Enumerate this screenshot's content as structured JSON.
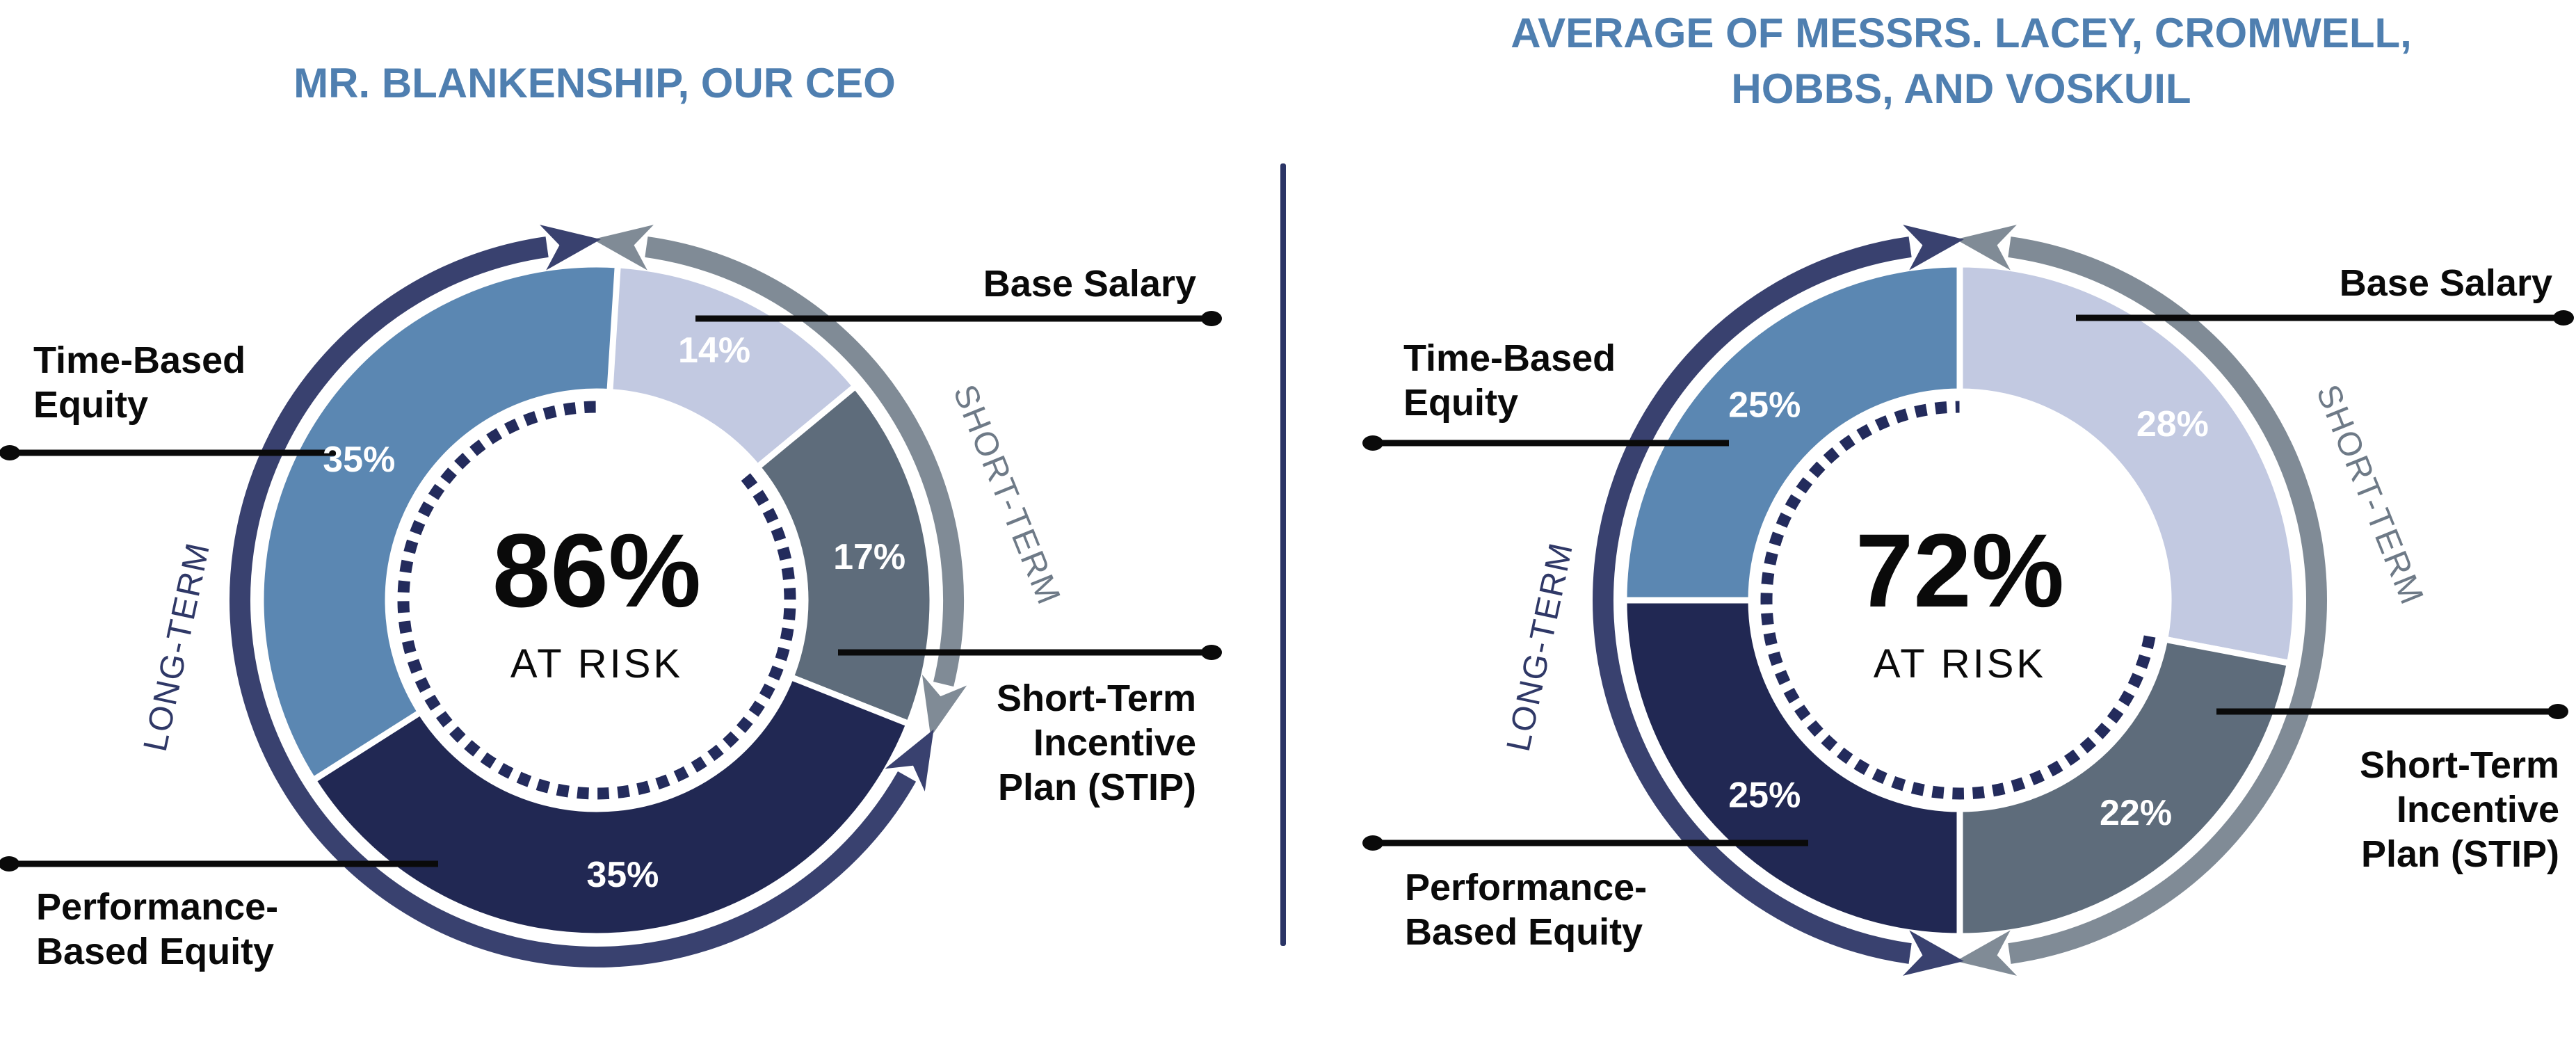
{
  "figure": {
    "kind": "executive-pay-mix-donuts",
    "background": "#ffffff",
    "divider_color": "#2b3566"
  },
  "chart_data": {
    "type": "pie",
    "subtype": "donut-pair",
    "title": "Pay mix: percent of compensation at risk",
    "legend_position": "callouts",
    "colors": {
      "title_text": "#4f7fb0",
      "long_term_arc": "#39416f",
      "short_term_arc": "#808b96",
      "dotted_ring": "#232b5c",
      "callout_line": "#0a0a0a",
      "percent_text": "#ffffff"
    },
    "charts": [
      {
        "id": "ceo",
        "title_lines": [
          "MR. BLANKENSHIP, OUR CEO"
        ],
        "center_value": "86%",
        "center_label": "AT RISK",
        "at_risk_pct": 86,
        "arc_labels": {
          "short_term": "SHORT-TERM",
          "long_term": "LONG-TERM"
        },
        "categories": [
          "Base Salary",
          "Short-Term Incentive Plan (STIP)",
          "Performance-Based Equity",
          "Time-Based Equity"
        ],
        "values": [
          14,
          17,
          35,
          35
        ],
        "segments": [
          {
            "label": "Base Salary",
            "pct": 14,
            "display": "14%",
            "color": "#c2c9e1",
            "term": "short"
          },
          {
            "label": "Short-Term Incentive Plan (STIP)",
            "pct": 17,
            "display": "17%",
            "color": "#5e6c7b",
            "term": "short"
          },
          {
            "label": "Performance-Based Equity",
            "pct": 35,
            "display": "35%",
            "color": "#212853",
            "term": "long"
          },
          {
            "label": "Time-Based Equity",
            "pct": 35,
            "display": "35%",
            "color": "#5b87b2",
            "term": "long"
          }
        ],
        "callout_labels": {
          "base": [
            "Base Salary"
          ],
          "time": [
            "Time-Based",
            "Equity"
          ],
          "stip": [
            "Short-Term",
            "Incentive",
            "Plan (STIP)"
          ],
          "perf": [
            "Performance-",
            "Based Equity"
          ]
        }
      },
      {
        "id": "neo-average",
        "title_lines": [
          "AVERAGE OF MESSRS. LACEY, CROMWELL,",
          "HOBBS, AND VOSKUIL"
        ],
        "center_value": "72%",
        "center_label": "AT RISK",
        "at_risk_pct": 72,
        "arc_labels": {
          "short_term": "SHORT-TERM",
          "long_term": "LONG-TERM"
        },
        "categories": [
          "Base Salary",
          "Short-Term Incentive Plan (STIP)",
          "Performance-Based Equity",
          "Time-Based Equity"
        ],
        "values": [
          28,
          22,
          25,
          25
        ],
        "segments": [
          {
            "label": "Base Salary",
            "pct": 28,
            "display": "28%",
            "color": "#c2c9e1",
            "term": "short"
          },
          {
            "label": "Short-Term Incentive Plan (STIP)",
            "pct": 22,
            "display": "22%",
            "color": "#5e6c7b",
            "term": "short"
          },
          {
            "label": "Performance-Based Equity",
            "pct": 25,
            "display": "25%",
            "color": "#212853",
            "term": "long"
          },
          {
            "label": "Time-Based Equity",
            "pct": 25,
            "display": "25%",
            "color": "#5b87b2",
            "term": "long"
          }
        ],
        "callout_labels": {
          "base": [
            "Base Salary"
          ],
          "time": [
            "Time-Based",
            "Equity"
          ],
          "stip": [
            "Short-Term",
            "Incentive",
            "Plan (STIP)"
          ],
          "perf": [
            "Performance-",
            "Based Equity"
          ]
        }
      }
    ]
  }
}
